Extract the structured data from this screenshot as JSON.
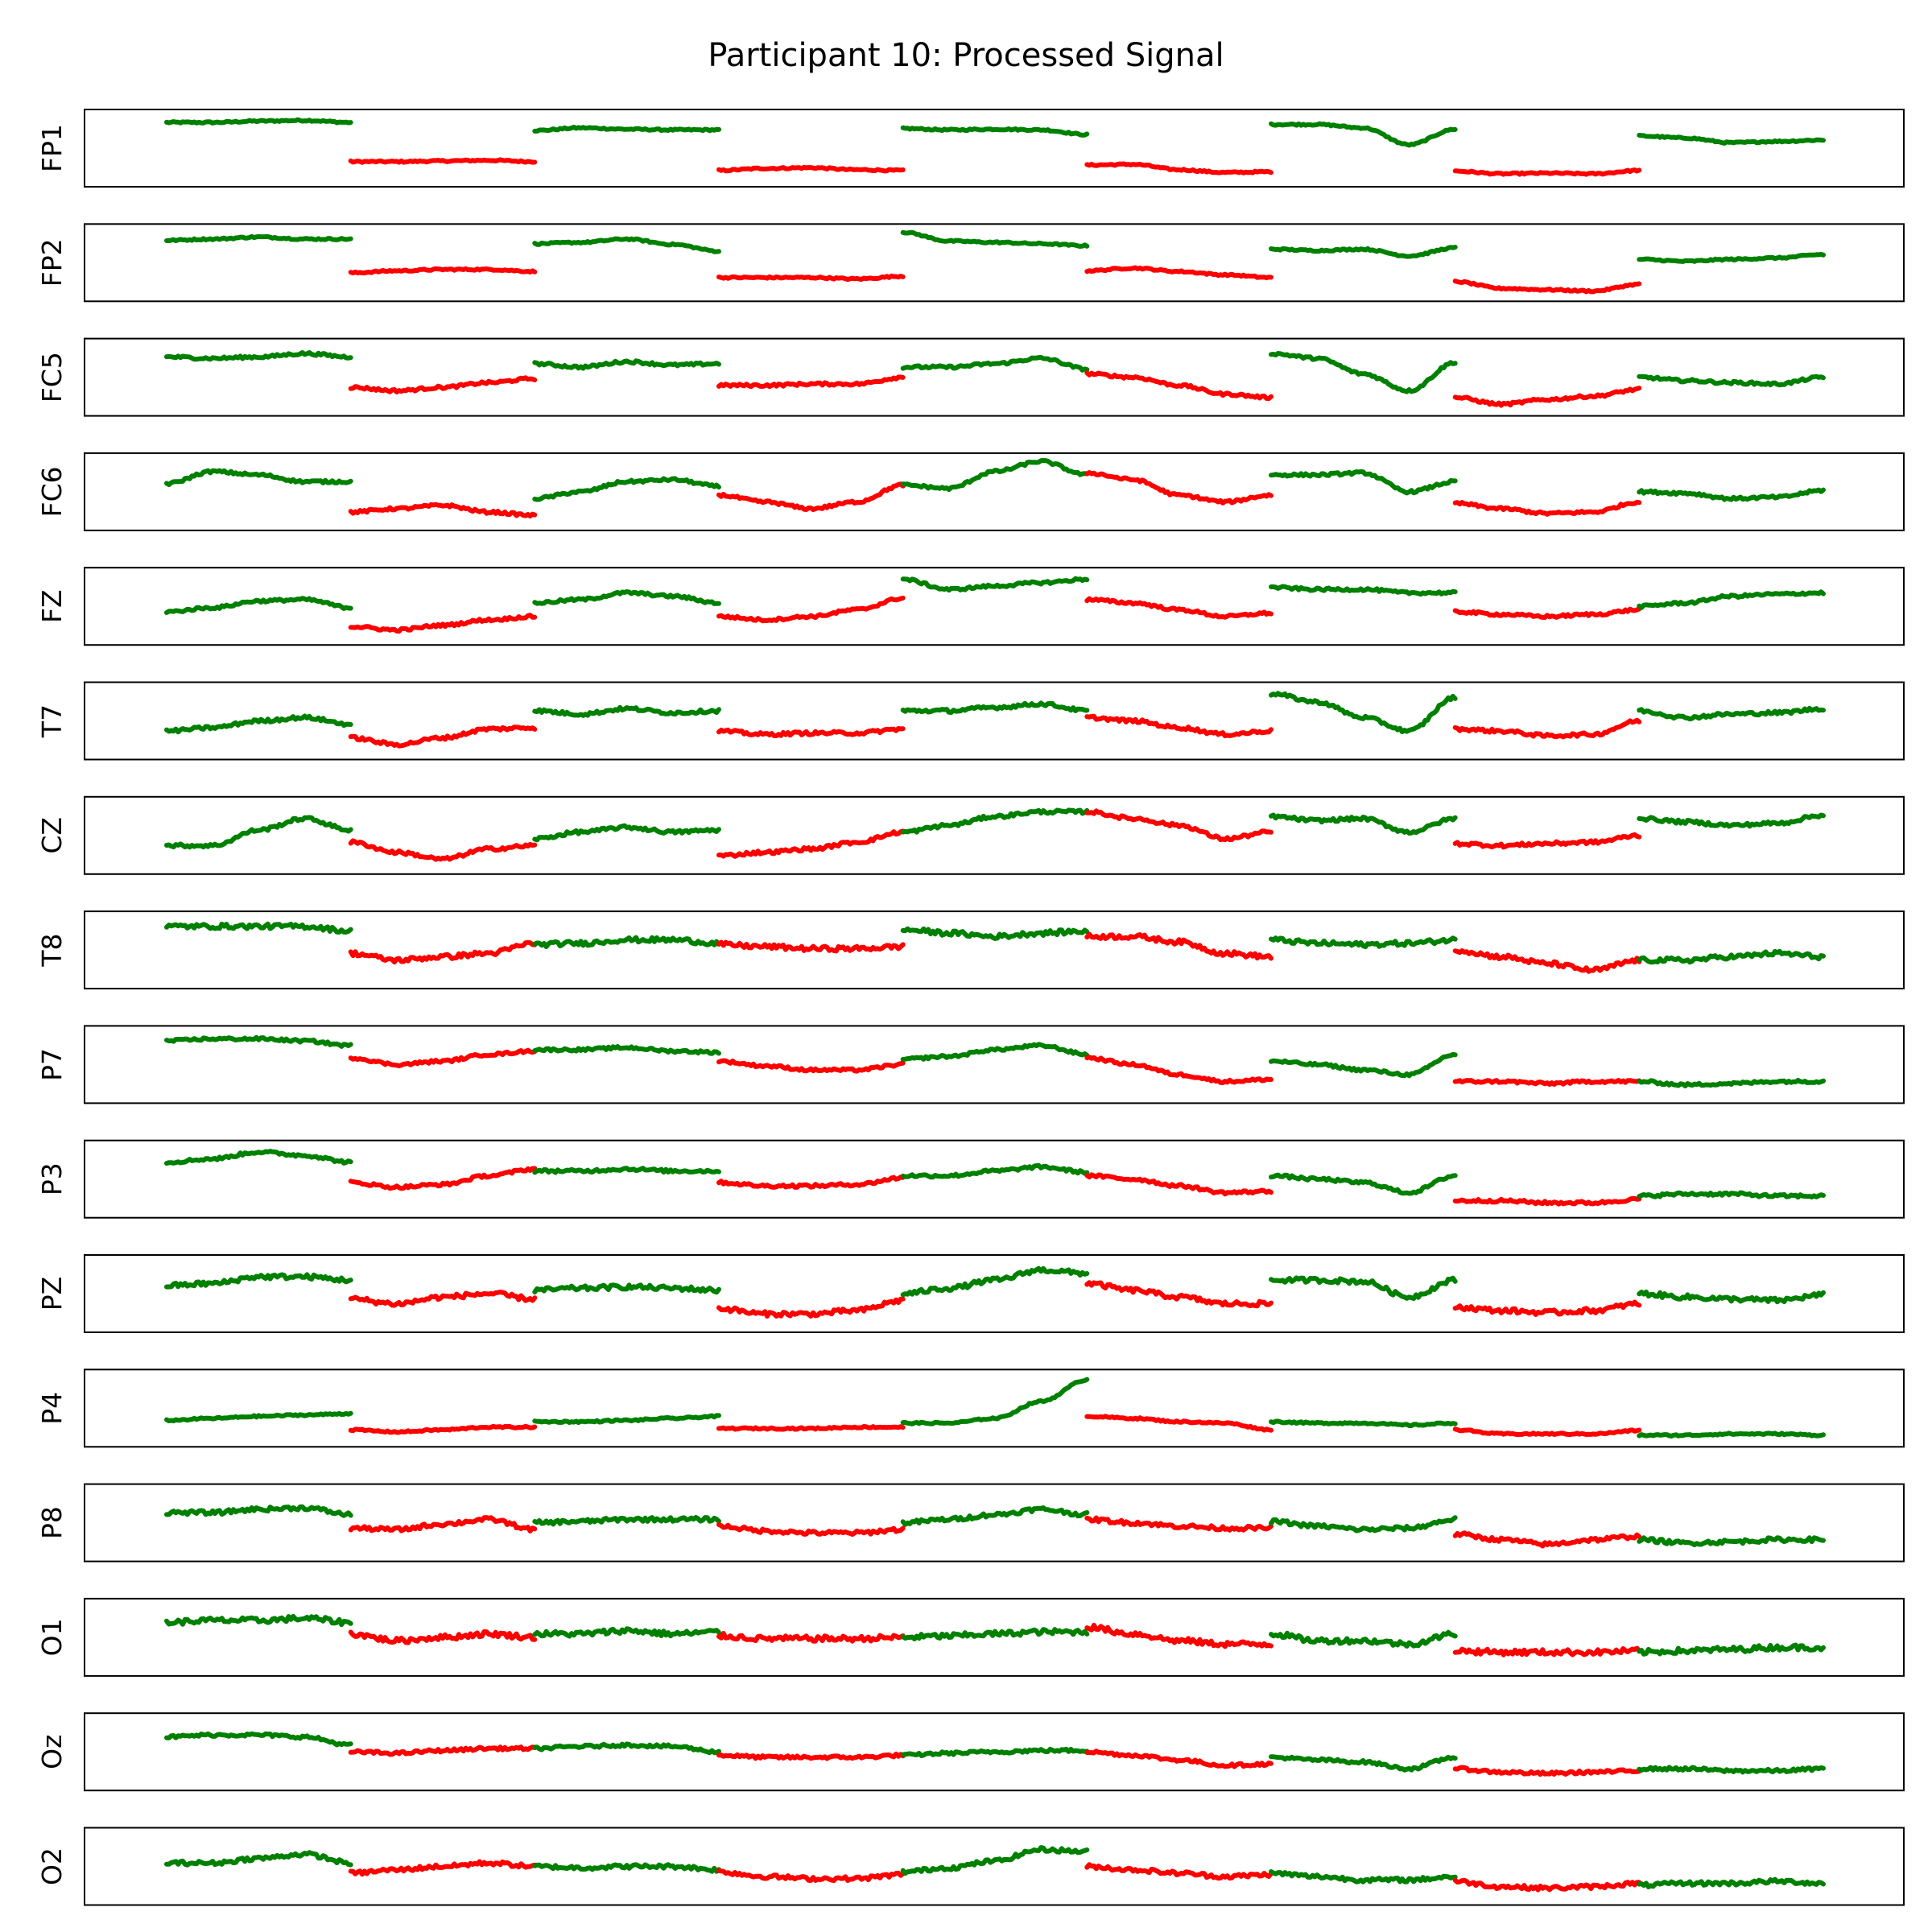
{
  "chart_data": {
    "type": "line",
    "title": "Participant 10: Processed Signal",
    "xlabel": "",
    "ylabel": "",
    "x_ticks_shown": false,
    "y_ticks_shown": false,
    "grid": false,
    "legend": null,
    "segment_colors": [
      "#008000",
      "#ff0000",
      "#008000",
      "#ff0000",
      "#008000",
      "#ff0000",
      "#008000",
      "#ff0000",
      "#008000"
    ],
    "colors": {
      "green": "#008000",
      "red": "#ff0000"
    },
    "x_range": [
      0,
      9
    ],
    "y_range": [
      0,
      1
    ],
    "channels": [
      {
        "name": "FP1",
        "noise": 0.012,
        "segments": [
          [
            0.88,
            0.88,
            0.9,
            0.91,
            0.88
          ],
          [
            0.3,
            0.3,
            0.31,
            0.32,
            0.3
          ],
          [
            0.76,
            0.8,
            0.78,
            0.77,
            0.77
          ],
          [
            0.17,
            0.2,
            0.21,
            0.18,
            0.17
          ],
          [
            0.79,
            0.77,
            0.78,
            0.77,
            0.7
          ],
          [
            0.25,
            0.26,
            0.18,
            0.14,
            0.15
          ],
          [
            0.85,
            0.85,
            0.8,
            0.55,
            0.78
          ],
          [
            0.16,
            0.12,
            0.13,
            0.12,
            0.17
          ],
          [
            0.68,
            0.65,
            0.58,
            0.6,
            0.62
          ]
        ]
      },
      {
        "name": "FP2",
        "noise": 0.012,
        "segments": [
          [
            0.83,
            0.85,
            0.88,
            0.85,
            0.85
          ],
          [
            0.35,
            0.38,
            0.4,
            0.4,
            0.37
          ],
          [
            0.78,
            0.8,
            0.85,
            0.77,
            0.67
          ],
          [
            0.28,
            0.28,
            0.28,
            0.26,
            0.3
          ],
          [
            0.95,
            0.82,
            0.8,
            0.78,
            0.75
          ],
          [
            0.38,
            0.42,
            0.37,
            0.32,
            0.28
          ],
          [
            0.7,
            0.68,
            0.7,
            0.6,
            0.72
          ],
          [
            0.22,
            0.12,
            0.1,
            0.08,
            0.18
          ],
          [
            0.55,
            0.52,
            0.55,
            0.57,
            0.62
          ]
        ]
      },
      {
        "name": "FC5",
        "noise": 0.02,
        "segments": [
          [
            0.8,
            0.78,
            0.8,
            0.85,
            0.8
          ],
          [
            0.35,
            0.3,
            0.35,
            0.42,
            0.48
          ],
          [
            0.7,
            0.65,
            0.73,
            0.68,
            0.7
          ],
          [
            0.38,
            0.38,
            0.4,
            0.4,
            0.5
          ],
          [
            0.65,
            0.65,
            0.7,
            0.78,
            0.62
          ],
          [
            0.55,
            0.5,
            0.38,
            0.25,
            0.2
          ],
          [
            0.85,
            0.78,
            0.55,
            0.3,
            0.72
          ],
          [
            0.2,
            0.1,
            0.17,
            0.22,
            0.32
          ],
          [
            0.5,
            0.45,
            0.42,
            0.4,
            0.5
          ]
        ]
      },
      {
        "name": "FC6",
        "noise": 0.02,
        "segments": [
          [
            0.62,
            0.8,
            0.75,
            0.65,
            0.65
          ],
          [
            0.2,
            0.25,
            0.3,
            0.2,
            0.15
          ],
          [
            0.4,
            0.5,
            0.65,
            0.68,
            0.58
          ],
          [
            0.45,
            0.35,
            0.25,
            0.35,
            0.6
          ],
          [
            0.6,
            0.55,
            0.8,
            0.95,
            0.75
          ],
          [
            0.78,
            0.68,
            0.45,
            0.35,
            0.45
          ],
          [
            0.75,
            0.75,
            0.78,
            0.5,
            0.65
          ],
          [
            0.33,
            0.25,
            0.18,
            0.2,
            0.35
          ],
          [
            0.5,
            0.48,
            0.4,
            0.42,
            0.52
          ]
        ]
      },
      {
        "name": "FZ",
        "noise": 0.02,
        "segments": [
          [
            0.42,
            0.48,
            0.58,
            0.6,
            0.48
          ],
          [
            0.2,
            0.15,
            0.22,
            0.3,
            0.35
          ],
          [
            0.55,
            0.6,
            0.7,
            0.65,
            0.55
          ],
          [
            0.35,
            0.3,
            0.35,
            0.45,
            0.62
          ],
          [
            0.9,
            0.75,
            0.8,
            0.85,
            0.9
          ],
          [
            0.6,
            0.55,
            0.45,
            0.35,
            0.4
          ],
          [
            0.78,
            0.75,
            0.75,
            0.7,
            0.7
          ],
          [
            0.42,
            0.38,
            0.35,
            0.38,
            0.45
          ],
          [
            0.5,
            0.55,
            0.65,
            0.68,
            0.7
          ]
        ]
      },
      {
        "name": "T7",
        "noise": 0.025,
        "segments": [
          [
            0.35,
            0.4,
            0.5,
            0.55,
            0.45
          ],
          [
            0.25,
            0.15,
            0.25,
            0.38,
            0.4
          ],
          [
            0.65,
            0.6,
            0.68,
            0.62,
            0.65
          ],
          [
            0.35,
            0.3,
            0.32,
            0.32,
            0.38
          ],
          [
            0.65,
            0.65,
            0.7,
            0.75,
            0.65
          ],
          [
            0.55,
            0.5,
            0.4,
            0.3,
            0.35
          ],
          [
            0.9,
            0.78,
            0.55,
            0.35,
            0.85
          ],
          [
            0.38,
            0.35,
            0.28,
            0.3,
            0.5
          ],
          [
            0.65,
            0.55,
            0.6,
            0.62,
            0.68
          ]
        ]
      },
      {
        "name": "CZ",
        "noise": 0.025,
        "segments": [
          [
            0.35,
            0.35,
            0.58,
            0.75,
            0.58
          ],
          [
            0.4,
            0.25,
            0.15,
            0.3,
            0.35
          ],
          [
            0.45,
            0.55,
            0.62,
            0.55,
            0.58
          ],
          [
            0.2,
            0.25,
            0.3,
            0.4,
            0.55
          ],
          [
            0.55,
            0.65,
            0.78,
            0.85,
            0.85
          ],
          [
            0.85,
            0.75,
            0.65,
            0.45,
            0.55
          ],
          [
            0.78,
            0.72,
            0.75,
            0.55,
            0.75
          ],
          [
            0.38,
            0.35,
            0.38,
            0.4,
            0.5
          ],
          [
            0.75,
            0.7,
            0.65,
            0.68,
            0.8
          ]
        ]
      },
      {
        "name": "T8",
        "noise": 0.035,
        "segments": [
          [
            0.85,
            0.85,
            0.85,
            0.85,
            0.78
          ],
          [
            0.45,
            0.35,
            0.4,
            0.45,
            0.6
          ],
          [
            0.58,
            0.6,
            0.65,
            0.65,
            0.6
          ],
          [
            0.58,
            0.55,
            0.52,
            0.52,
            0.55
          ],
          [
            0.8,
            0.75,
            0.7,
            0.75,
            0.78
          ],
          [
            0.7,
            0.7,
            0.62,
            0.45,
            0.4
          ],
          [
            0.65,
            0.6,
            0.58,
            0.6,
            0.65
          ],
          [
            0.5,
            0.4,
            0.3,
            0.2,
            0.35
          ],
          [
            0.35,
            0.35,
            0.4,
            0.45,
            0.4
          ]
        ]
      },
      {
        "name": "P7",
        "noise": 0.02,
        "segments": [
          [
            0.85,
            0.88,
            0.88,
            0.85,
            0.78
          ],
          [
            0.6,
            0.5,
            0.55,
            0.65,
            0.7
          ],
          [
            0.72,
            0.72,
            0.75,
            0.7,
            0.68
          ],
          [
            0.55,
            0.48,
            0.42,
            0.42,
            0.5
          ],
          [
            0.58,
            0.62,
            0.72,
            0.78,
            0.65
          ],
          [
            0.6,
            0.5,
            0.35,
            0.25,
            0.28
          ],
          [
            0.55,
            0.5,
            0.42,
            0.35,
            0.65
          ],
          [
            0.25,
            0.25,
            0.22,
            0.25,
            0.25
          ],
          [
            0.25,
            0.2,
            0.22,
            0.25,
            0.25
          ]
        ]
      },
      {
        "name": "P3",
        "noise": 0.022,
        "segments": [
          [
            0.75,
            0.8,
            0.9,
            0.85,
            0.75
          ],
          [
            0.45,
            0.38,
            0.42,
            0.55,
            0.65
          ],
          [
            0.62,
            0.62,
            0.65,
            0.62,
            0.62
          ],
          [
            0.45,
            0.4,
            0.4,
            0.42,
            0.52
          ],
          [
            0.55,
            0.55,
            0.62,
            0.68,
            0.6
          ],
          [
            0.55,
            0.5,
            0.4,
            0.3,
            0.32
          ],
          [
            0.55,
            0.5,
            0.45,
            0.3,
            0.55
          ],
          [
            0.18,
            0.18,
            0.15,
            0.15,
            0.2
          ],
          [
            0.25,
            0.28,
            0.28,
            0.25,
            0.25
          ]
        ]
      },
      {
        "name": "PZ",
        "noise": 0.035,
        "segments": [
          [
            0.62,
            0.65,
            0.75,
            0.75,
            0.7
          ],
          [
            0.42,
            0.35,
            0.45,
            0.5,
            0.42
          ],
          [
            0.55,
            0.58,
            0.6,
            0.58,
            0.55
          ],
          [
            0.28,
            0.2,
            0.2,
            0.25,
            0.4
          ],
          [
            0.5,
            0.58,
            0.7,
            0.85,
            0.8
          ],
          [
            0.65,
            0.55,
            0.45,
            0.35,
            0.35
          ],
          [
            0.7,
            0.7,
            0.68,
            0.45,
            0.7
          ],
          [
            0.3,
            0.25,
            0.22,
            0.25,
            0.35
          ],
          [
            0.5,
            0.45,
            0.42,
            0.4,
            0.48
          ]
        ]
      },
      {
        "name": "P4",
        "noise": 0.012,
        "segments": [
          [
            0.32,
            0.35,
            0.38,
            0.4,
            0.42
          ],
          [
            0.18,
            0.15,
            0.18,
            0.22,
            0.22
          ],
          [
            0.3,
            0.3,
            0.32,
            0.35,
            0.38
          ],
          [
            0.2,
            0.2,
            0.2,
            0.22,
            0.22
          ],
          [
            0.28,
            0.28,
            0.35,
            0.6,
            0.92
          ],
          [
            0.38,
            0.35,
            0.3,
            0.28,
            0.18
          ],
          [
            0.3,
            0.28,
            0.28,
            0.25,
            0.28
          ],
          [
            0.18,
            0.12,
            0.12,
            0.12,
            0.17
          ],
          [
            0.1,
            0.1,
            0.12,
            0.12,
            0.1
          ]
        ]
      },
      {
        "name": "P8",
        "noise": 0.03,
        "segments": [
          [
            0.65,
            0.65,
            0.7,
            0.72,
            0.62
          ],
          [
            0.42,
            0.4,
            0.48,
            0.55,
            0.4
          ],
          [
            0.5,
            0.52,
            0.55,
            0.55,
            0.55
          ],
          [
            0.45,
            0.38,
            0.35,
            0.35,
            0.4
          ],
          [
            0.5,
            0.55,
            0.62,
            0.7,
            0.62
          ],
          [
            0.55,
            0.5,
            0.45,
            0.42,
            0.42
          ],
          [
            0.52,
            0.45,
            0.4,
            0.42,
            0.55
          ],
          [
            0.33,
            0.25,
            0.18,
            0.25,
            0.3
          ],
          [
            0.25,
            0.2,
            0.22,
            0.25,
            0.25
          ]
        ]
      },
      {
        "name": "O1",
        "noise": 0.04,
        "segments": [
          [
            0.72,
            0.75,
            0.75,
            0.78,
            0.72
          ],
          [
            0.55,
            0.45,
            0.5,
            0.55,
            0.5
          ],
          [
            0.55,
            0.55,
            0.6,
            0.55,
            0.58
          ],
          [
            0.52,
            0.48,
            0.48,
            0.48,
            0.5
          ],
          [
            0.5,
            0.52,
            0.55,
            0.58,
            0.58
          ],
          [
            0.65,
            0.55,
            0.45,
            0.4,
            0.4
          ],
          [
            0.55,
            0.45,
            0.45,
            0.4,
            0.55
          ],
          [
            0.3,
            0.28,
            0.28,
            0.28,
            0.3
          ],
          [
            0.28,
            0.3,
            0.32,
            0.35,
            0.35
          ]
        ]
      },
      {
        "name": "Oz",
        "noise": 0.022,
        "segments": [
          [
            0.72,
            0.75,
            0.75,
            0.72,
            0.6
          ],
          [
            0.5,
            0.48,
            0.52,
            0.55,
            0.55
          ],
          [
            0.55,
            0.58,
            0.6,
            0.58,
            0.5
          ],
          [
            0.45,
            0.42,
            0.42,
            0.42,
            0.45
          ],
          [
            0.45,
            0.48,
            0.5,
            0.52,
            0.52
          ],
          [
            0.5,
            0.45,
            0.38,
            0.3,
            0.32
          ],
          [
            0.42,
            0.38,
            0.35,
            0.25,
            0.42
          ],
          [
            0.25,
            0.2,
            0.18,
            0.2,
            0.22
          ],
          [
            0.25,
            0.25,
            0.22,
            0.22,
            0.25
          ]
        ]
      },
      {
        "name": "O2",
        "noise": 0.03,
        "segments": [
          [
            0.55,
            0.55,
            0.62,
            0.68,
            0.55
          ],
          [
            0.4,
            0.45,
            0.5,
            0.55,
            0.5
          ],
          [
            0.5,
            0.48,
            0.5,
            0.5,
            0.45
          ],
          [
            0.42,
            0.35,
            0.32,
            0.32,
            0.38
          ],
          [
            0.42,
            0.48,
            0.58,
            0.75,
            0.72
          ],
          [
            0.5,
            0.45,
            0.4,
            0.35,
            0.38
          ],
          [
            0.4,
            0.35,
            0.3,
            0.3,
            0.35
          ],
          [
            0.28,
            0.2,
            0.18,
            0.2,
            0.25
          ],
          [
            0.22,
            0.25,
            0.25,
            0.28,
            0.25
          ]
        ]
      }
    ]
  }
}
